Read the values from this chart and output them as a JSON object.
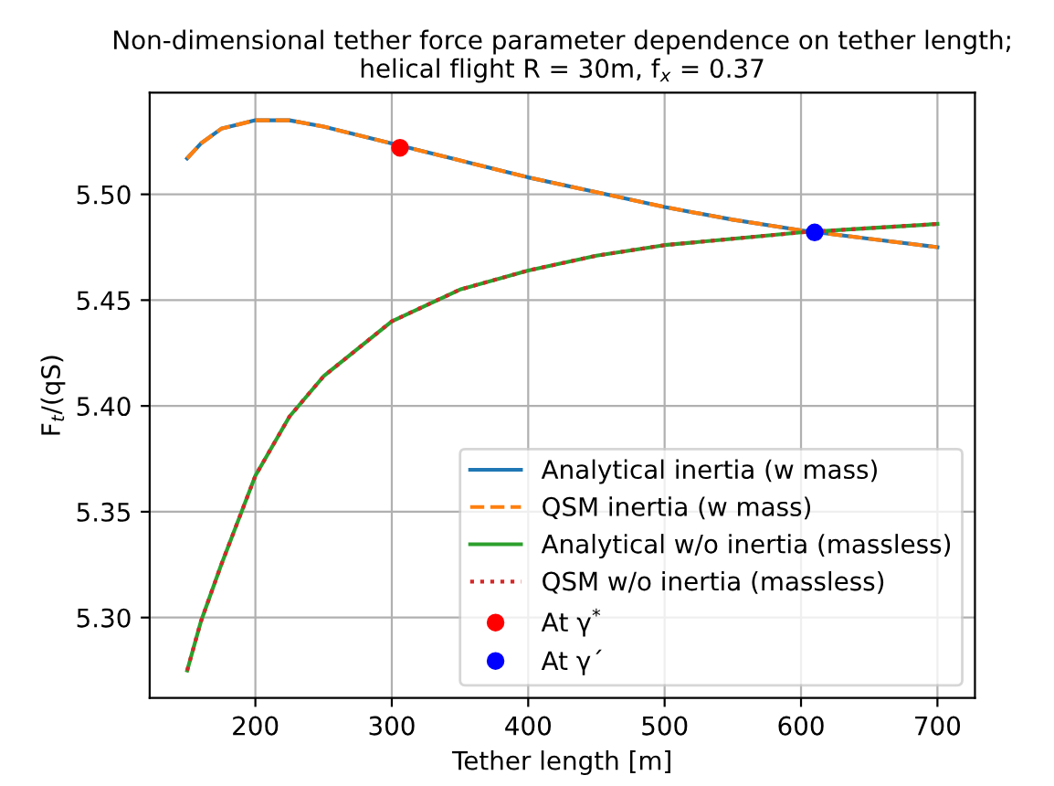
{
  "chart_data": {
    "type": "line",
    "title": "Non-dimensional tether force parameter dependence on tether length;\nhelical flight R = 30m, f$_{x}$ = 0.37",
    "xlabel": "Tether length [m]",
    "ylabel": "F$_{t}$/(qS)",
    "xlim": [
      122.5,
      727.5
    ],
    "ylim": [
      5.262,
      5.548
    ],
    "xticks": [
      200,
      300,
      400,
      500,
      600,
      700
    ],
    "yticks": [
      {
        "value": 5.3,
        "label": "5.30"
      },
      {
        "value": 5.35,
        "label": "5.35"
      },
      {
        "value": 5.4,
        "label": "5.40"
      },
      {
        "value": 5.45,
        "label": "5.45"
      },
      {
        "value": 5.5,
        "label": "5.50"
      }
    ],
    "grid": true,
    "legend": "bottom right",
    "series": [
      {
        "name": "Analytical inertia (w mass)",
        "color": "#1f77b4",
        "line_style": "solid",
        "x": [
          150,
          160,
          175,
          200,
          225,
          250,
          300,
          350,
          400,
          450,
          500,
          550,
          600,
          650,
          700
        ],
        "values": [
          5.517,
          5.524,
          5.531,
          5.535,
          5.535,
          5.532,
          5.524,
          5.516,
          5.508,
          5.501,
          5.494,
          5.488,
          5.483,
          5.479,
          5.475
        ]
      },
      {
        "name": "QSM inertia (w mass)",
        "color": "#ff7f0e",
        "line_style": "dashed",
        "x": [
          150,
          160,
          175,
          200,
          225,
          250,
          300,
          350,
          400,
          450,
          500,
          550,
          600,
          650,
          700
        ],
        "values": [
          5.517,
          5.524,
          5.531,
          5.535,
          5.535,
          5.532,
          5.524,
          5.516,
          5.508,
          5.501,
          5.494,
          5.488,
          5.483,
          5.479,
          5.475
        ]
      },
      {
        "name": "Analytical w/o inertia (massless)",
        "color": "#2ca02c",
        "line_style": "solid",
        "x": [
          150,
          160,
          175,
          200,
          225,
          250,
          300,
          350,
          400,
          450,
          500,
          550,
          600,
          650,
          700
        ],
        "values": [
          5.275,
          5.298,
          5.325,
          5.367,
          5.395,
          5.414,
          5.44,
          5.455,
          5.464,
          5.471,
          5.476,
          5.479,
          5.482,
          5.484,
          5.486
        ]
      },
      {
        "name": "QSM w/o inertia (massless)",
        "color": "#d62728",
        "line_style": "dotted",
        "x": [
          150,
          160,
          175,
          200,
          225,
          250,
          300,
          350,
          400,
          450,
          500,
          550,
          600,
          650,
          700
        ],
        "values": [
          5.275,
          5.298,
          5.325,
          5.367,
          5.395,
          5.414,
          5.44,
          5.455,
          5.464,
          5.471,
          5.476,
          5.479,
          5.482,
          5.484,
          5.486
        ]
      },
      {
        "name": "At γ$^{*}$",
        "type": "scatter",
        "marker": "circle",
        "color": "#ff0000",
        "x": [
          306
        ],
        "values": [
          5.522
        ]
      },
      {
        "name": "At γ´",
        "type": "scatter",
        "marker": "circle",
        "color": "#0000ff",
        "x": [
          610
        ],
        "values": [
          5.482
        ]
      }
    ]
  }
}
